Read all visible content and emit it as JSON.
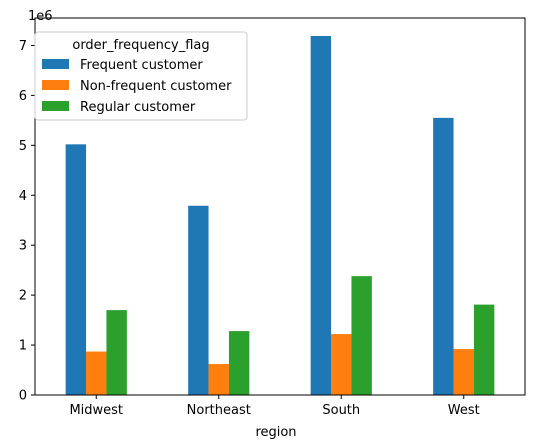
{
  "chart_data": {
    "type": "bar",
    "title": "",
    "xlabel": "region",
    "ylabel": "",
    "y_offset_label": "1e6",
    "categories": [
      "Midwest",
      "Northeast",
      "South",
      "West"
    ],
    "series": [
      {
        "name": "Frequent customer",
        "color": "#1f77b4",
        "values": [
          5020000,
          3790000,
          7190000,
          5550000
        ]
      },
      {
        "name": "Non-frequent customer",
        "color": "#ff7f0e",
        "values": [
          870000,
          620000,
          1220000,
          920000
        ]
      },
      {
        "name": "Regular customer",
        "color": "#2ca02c",
        "values": [
          1700000,
          1280000,
          2380000,
          1810000
        ]
      }
    ],
    "ylim": [
      0,
      7550000
    ],
    "y_ticks": [
      0,
      1,
      2,
      3,
      4,
      5,
      6,
      7
    ],
    "y_tick_scale": 1000000,
    "grid": false,
    "legend": {
      "title": "order_frequency_flag",
      "placement": "upper-left"
    }
  }
}
